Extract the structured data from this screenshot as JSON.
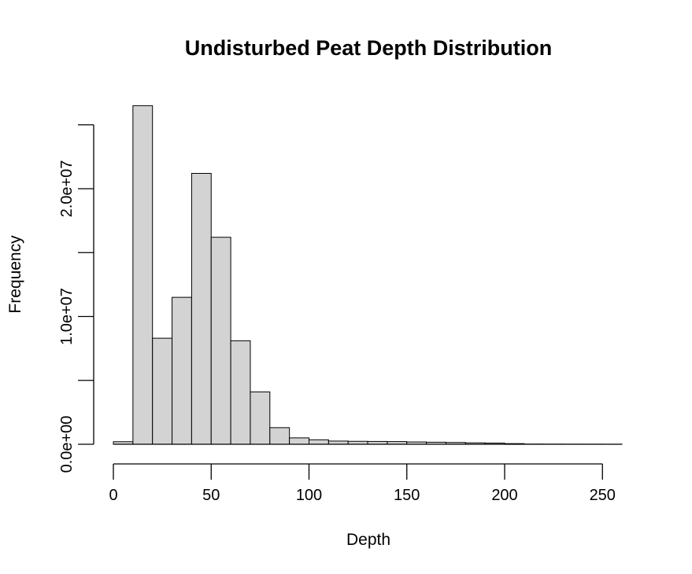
{
  "chart_data": {
    "type": "bar",
    "title": "Undisturbed Peat Depth Distribution",
    "xlabel": "Depth",
    "ylabel": "Frequency",
    "bin_width": 10,
    "bin_starts": [
      0,
      10,
      20,
      30,
      40,
      50,
      60,
      70,
      80,
      90,
      100,
      110,
      120,
      130,
      140,
      150,
      160,
      170,
      180,
      190,
      200,
      210,
      220,
      230,
      240,
      250
    ],
    "values": [
      200000,
      26500000,
      8300000,
      11500000,
      21200000,
      16200000,
      8100000,
      4100000,
      1300000,
      500000,
      350000,
      250000,
      230000,
      220000,
      210000,
      180000,
      160000,
      140000,
      110000,
      90000,
      50000,
      15000,
      10000,
      8000,
      6000,
      4000
    ],
    "xlim": [
      0,
      260
    ],
    "ylim": [
      0,
      25000000
    ],
    "x_ticks": [
      0,
      50,
      100,
      150,
      200,
      250
    ],
    "x_tick_labels": [
      "0",
      "50",
      "100",
      "150",
      "200",
      "250"
    ],
    "y_ticks": [
      0,
      5000000,
      10000000,
      15000000,
      20000000,
      25000000
    ],
    "y_tick_labels": [
      "0.0e+00",
      "",
      "1.0e+07",
      "",
      "2.0e+07",
      ""
    ],
    "bar_fill": "#d3d3d3",
    "grid": false,
    "legend": "none"
  }
}
